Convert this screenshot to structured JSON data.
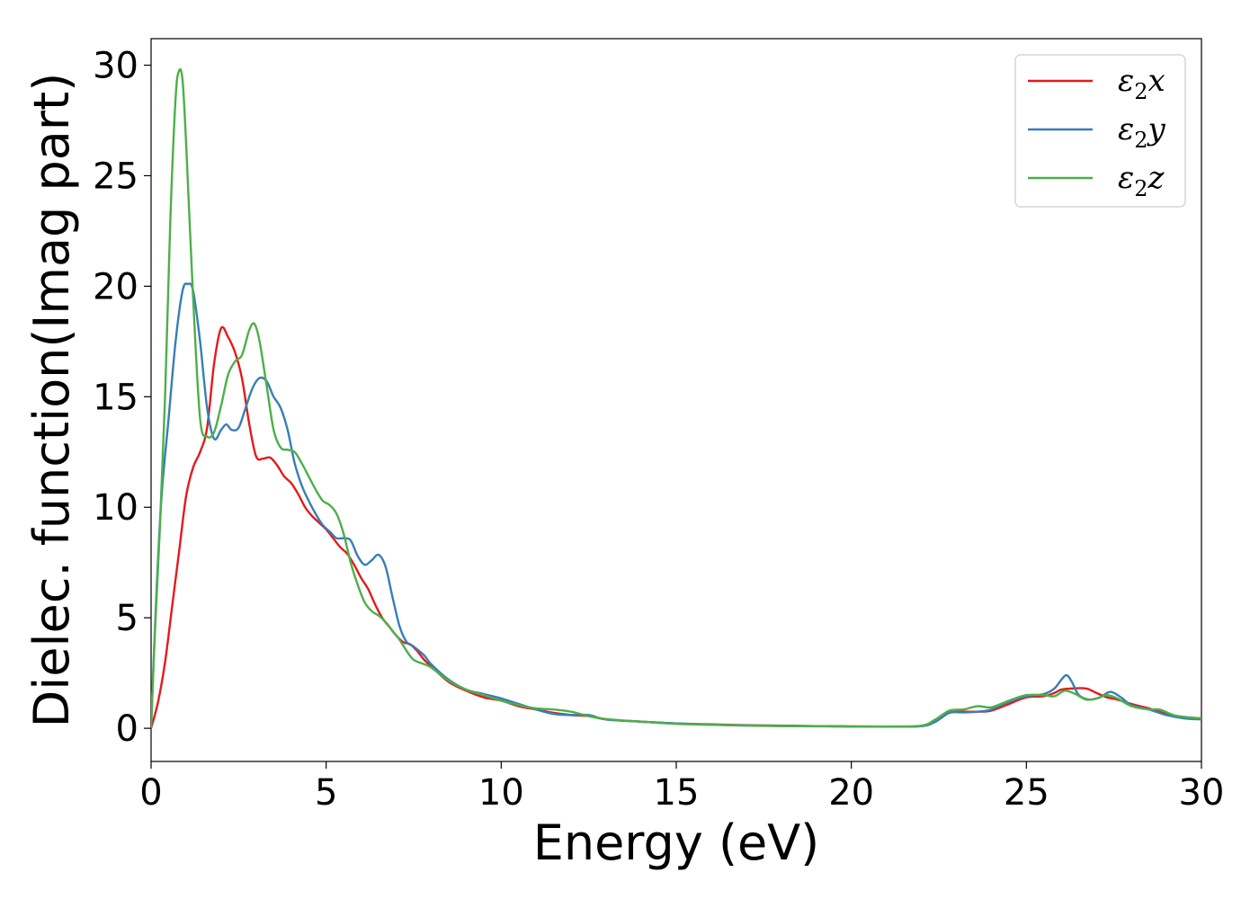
{
  "chart_data": {
    "type": "line",
    "xlabel": "Energy (eV)",
    "ylabel": "Dielec. function(Imag part)",
    "xlim": [
      0,
      30
    ],
    "ylim": [
      -1.5,
      31.2
    ],
    "xticks": [
      0,
      5,
      10,
      15,
      20,
      25,
      30
    ],
    "yticks": [
      0,
      5,
      10,
      15,
      20,
      25,
      30
    ],
    "grid": false,
    "legend_position": "top-right",
    "series": [
      {
        "name": "ε₂x",
        "legend_base": "ε",
        "legend_sub": "2",
        "legend_tail": "x",
        "color": "#e41a1c",
        "points": [
          [
            0,
            0
          ],
          [
            0.2,
            1.2
          ],
          [
            0.4,
            3
          ],
          [
            0.6,
            5.5
          ],
          [
            0.8,
            8
          ],
          [
            1.0,
            10.5
          ],
          [
            1.2,
            11.8
          ],
          [
            1.4,
            12.5
          ],
          [
            1.6,
            13.6
          ],
          [
            1.8,
            16.5
          ],
          [
            2.0,
            18.1
          ],
          [
            2.2,
            17.7
          ],
          [
            2.4,
            17
          ],
          [
            2.6,
            15.8
          ],
          [
            2.8,
            13.8
          ],
          [
            3.0,
            12.3
          ],
          [
            3.2,
            12.2
          ],
          [
            3.4,
            12.25
          ],
          [
            3.6,
            11.9
          ],
          [
            3.8,
            11.4
          ],
          [
            4.0,
            11.1
          ],
          [
            4.2,
            10.6
          ],
          [
            4.4,
            10.0
          ],
          [
            4.6,
            9.6
          ],
          [
            4.8,
            9.3
          ],
          [
            5.0,
            9.0
          ],
          [
            5.2,
            8.6
          ],
          [
            5.4,
            8.2
          ],
          [
            5.6,
            7.9
          ],
          [
            5.8,
            7.4
          ],
          [
            6.0,
            6.8
          ],
          [
            6.2,
            6.3
          ],
          [
            6.4,
            5.6
          ],
          [
            6.6,
            5.0
          ],
          [
            6.8,
            4.6
          ],
          [
            7.0,
            4.2
          ],
          [
            7.2,
            3.9
          ],
          [
            7.4,
            3.8
          ],
          [
            7.6,
            3.5
          ],
          [
            7.8,
            3.1
          ],
          [
            8.0,
            2.8
          ],
          [
            8.5,
            2.1
          ],
          [
            9,
            1.7
          ],
          [
            9.5,
            1.4
          ],
          [
            10,
            1.25
          ],
          [
            10.5,
            1.0
          ],
          [
            11,
            0.85
          ],
          [
            11.5,
            0.7
          ],
          [
            12,
            0.6
          ],
          [
            12.5,
            0.55
          ],
          [
            13,
            0.4
          ],
          [
            14,
            0.3
          ],
          [
            15,
            0.22
          ],
          [
            16,
            0.18
          ],
          [
            17,
            0.14
          ],
          [
            18,
            0.12
          ],
          [
            19,
            0.1
          ],
          [
            20,
            0.09
          ],
          [
            21,
            0.08
          ],
          [
            22,
            0.1
          ],
          [
            22.4,
            0.3
          ],
          [
            22.8,
            0.7
          ],
          [
            23.2,
            0.75
          ],
          [
            23.6,
            0.75
          ],
          [
            24,
            0.8
          ],
          [
            24.5,
            1.1
          ],
          [
            25,
            1.4
          ],
          [
            25.5,
            1.45
          ],
          [
            25.8,
            1.6
          ],
          [
            26.0,
            1.75
          ],
          [
            26.3,
            1.8
          ],
          [
            26.7,
            1.8
          ],
          [
            27.0,
            1.6
          ],
          [
            27.3,
            1.4
          ],
          [
            27.6,
            1.3
          ],
          [
            28.0,
            1.1
          ],
          [
            28.5,
            0.9
          ],
          [
            29,
            0.65
          ],
          [
            29.5,
            0.5
          ],
          [
            30,
            0.45
          ]
        ]
      },
      {
        "name": "ε₂y",
        "legend_base": "ε",
        "legend_sub": "2",
        "legend_tail": "y",
        "color": "#377eb8",
        "points": [
          [
            0,
            0
          ],
          [
            0.15,
            6
          ],
          [
            0.3,
            10.5
          ],
          [
            0.5,
            14
          ],
          [
            0.7,
            17.5
          ],
          [
            0.9,
            19.8
          ],
          [
            1.05,
            20.1
          ],
          [
            1.2,
            19.8
          ],
          [
            1.4,
            17.5
          ],
          [
            1.6,
            14.5
          ],
          [
            1.8,
            13.1
          ],
          [
            2.0,
            13.5
          ],
          [
            2.15,
            13.75
          ],
          [
            2.3,
            13.5
          ],
          [
            2.5,
            13.6
          ],
          [
            2.7,
            14.5
          ],
          [
            2.9,
            15.4
          ],
          [
            3.1,
            15.85
          ],
          [
            3.3,
            15.7
          ],
          [
            3.5,
            15.0
          ],
          [
            3.7,
            14.5
          ],
          [
            3.9,
            13.5
          ],
          [
            4.1,
            12.0
          ],
          [
            4.3,
            11.0
          ],
          [
            4.5,
            10.3
          ],
          [
            4.7,
            9.7
          ],
          [
            4.9,
            9.2
          ],
          [
            5.1,
            8.9
          ],
          [
            5.3,
            8.6
          ],
          [
            5.5,
            8.6
          ],
          [
            5.7,
            8.5
          ],
          [
            5.9,
            7.8
          ],
          [
            6.1,
            7.4
          ],
          [
            6.3,
            7.6
          ],
          [
            6.5,
            7.85
          ],
          [
            6.7,
            7.3
          ],
          [
            6.9,
            5.9
          ],
          [
            7.1,
            4.6
          ],
          [
            7.3,
            3.9
          ],
          [
            7.5,
            3.7
          ],
          [
            7.8,
            3.3
          ],
          [
            8.0,
            2.9
          ],
          [
            8.5,
            2.2
          ],
          [
            9,
            1.75
          ],
          [
            9.5,
            1.55
          ],
          [
            10,
            1.35
          ],
          [
            10.5,
            1.1
          ],
          [
            11,
            0.85
          ],
          [
            11.5,
            0.65
          ],
          [
            12,
            0.6
          ],
          [
            12.5,
            0.6
          ],
          [
            13,
            0.4
          ],
          [
            14,
            0.3
          ],
          [
            15,
            0.22
          ],
          [
            16,
            0.16
          ],
          [
            17,
            0.13
          ],
          [
            18,
            0.11
          ],
          [
            19,
            0.1
          ],
          [
            20,
            0.08
          ],
          [
            21,
            0.08
          ],
          [
            22,
            0.1
          ],
          [
            22.4,
            0.3
          ],
          [
            22.8,
            0.7
          ],
          [
            23.2,
            0.72
          ],
          [
            23.6,
            0.75
          ],
          [
            24,
            0.85
          ],
          [
            24.5,
            1.2
          ],
          [
            25,
            1.45
          ],
          [
            25.5,
            1.55
          ],
          [
            25.8,
            1.8
          ],
          [
            26.0,
            2.2
          ],
          [
            26.15,
            2.4
          ],
          [
            26.3,
            2.1
          ],
          [
            26.5,
            1.5
          ],
          [
            26.8,
            1.3
          ],
          [
            27.1,
            1.4
          ],
          [
            27.4,
            1.65
          ],
          [
            27.7,
            1.4
          ],
          [
            28.0,
            1.05
          ],
          [
            28.5,
            0.85
          ],
          [
            29,
            0.6
          ],
          [
            29.5,
            0.45
          ],
          [
            30,
            0.4
          ]
        ]
      },
      {
        "name": "ε₂z",
        "legend_base": "ε",
        "legend_sub": "2",
        "legend_tail": "z",
        "color": "#4daf4a",
        "points": [
          [
            0,
            0
          ],
          [
            0.1,
            4
          ],
          [
            0.25,
            9
          ],
          [
            0.4,
            15
          ],
          [
            0.55,
            23
          ],
          [
            0.7,
            28.5
          ],
          [
            0.8,
            29.75
          ],
          [
            0.9,
            29.3
          ],
          [
            1.0,
            26.5
          ],
          [
            1.2,
            19.5
          ],
          [
            1.4,
            14.0
          ],
          [
            1.6,
            13.2
          ],
          [
            1.8,
            13.4
          ],
          [
            2.0,
            14.6
          ],
          [
            2.2,
            16.0
          ],
          [
            2.4,
            16.6
          ],
          [
            2.6,
            16.9
          ],
          [
            2.8,
            18.0
          ],
          [
            2.95,
            18.3
          ],
          [
            3.1,
            17.5
          ],
          [
            3.3,
            15.5
          ],
          [
            3.5,
            13.5
          ],
          [
            3.7,
            12.7
          ],
          [
            3.9,
            12.6
          ],
          [
            4.1,
            12.5
          ],
          [
            4.3,
            12.0
          ],
          [
            4.5,
            11.4
          ],
          [
            4.7,
            10.8
          ],
          [
            4.9,
            10.3
          ],
          [
            5.1,
            10.1
          ],
          [
            5.3,
            9.7
          ],
          [
            5.5,
            8.8
          ],
          [
            5.7,
            7.5
          ],
          [
            5.9,
            6.5
          ],
          [
            6.1,
            5.7
          ],
          [
            6.3,
            5.3
          ],
          [
            6.5,
            5.1
          ],
          [
            6.7,
            4.8
          ],
          [
            6.9,
            4.4
          ],
          [
            7.1,
            4.0
          ],
          [
            7.3,
            3.5
          ],
          [
            7.5,
            3.1
          ],
          [
            7.8,
            2.9
          ],
          [
            8.0,
            2.75
          ],
          [
            8.5,
            2.15
          ],
          [
            9,
            1.75
          ],
          [
            9.5,
            1.5
          ],
          [
            10,
            1.25
          ],
          [
            10.5,
            1.05
          ],
          [
            11,
            0.9
          ],
          [
            11.5,
            0.85
          ],
          [
            12,
            0.75
          ],
          [
            12.5,
            0.55
          ],
          [
            13,
            0.42
          ],
          [
            14,
            0.3
          ],
          [
            15,
            0.2
          ],
          [
            16,
            0.16
          ],
          [
            17,
            0.12
          ],
          [
            18,
            0.1
          ],
          [
            19,
            0.09
          ],
          [
            20,
            0.08
          ],
          [
            21,
            0.08
          ],
          [
            22,
            0.12
          ],
          [
            22.4,
            0.4
          ],
          [
            22.8,
            0.8
          ],
          [
            23.2,
            0.85
          ],
          [
            23.6,
            1.0
          ],
          [
            24,
            0.95
          ],
          [
            24.5,
            1.25
          ],
          [
            25,
            1.5
          ],
          [
            25.5,
            1.5
          ],
          [
            25.8,
            1.45
          ],
          [
            26.1,
            1.7
          ],
          [
            26.4,
            1.55
          ],
          [
            26.7,
            1.3
          ],
          [
            27.0,
            1.35
          ],
          [
            27.3,
            1.5
          ],
          [
            27.6,
            1.35
          ],
          [
            28.0,
            1.0
          ],
          [
            28.5,
            0.85
          ],
          [
            28.8,
            0.85
          ],
          [
            29.2,
            0.6
          ],
          [
            29.6,
            0.5
          ],
          [
            30,
            0.45
          ]
        ]
      }
    ]
  }
}
